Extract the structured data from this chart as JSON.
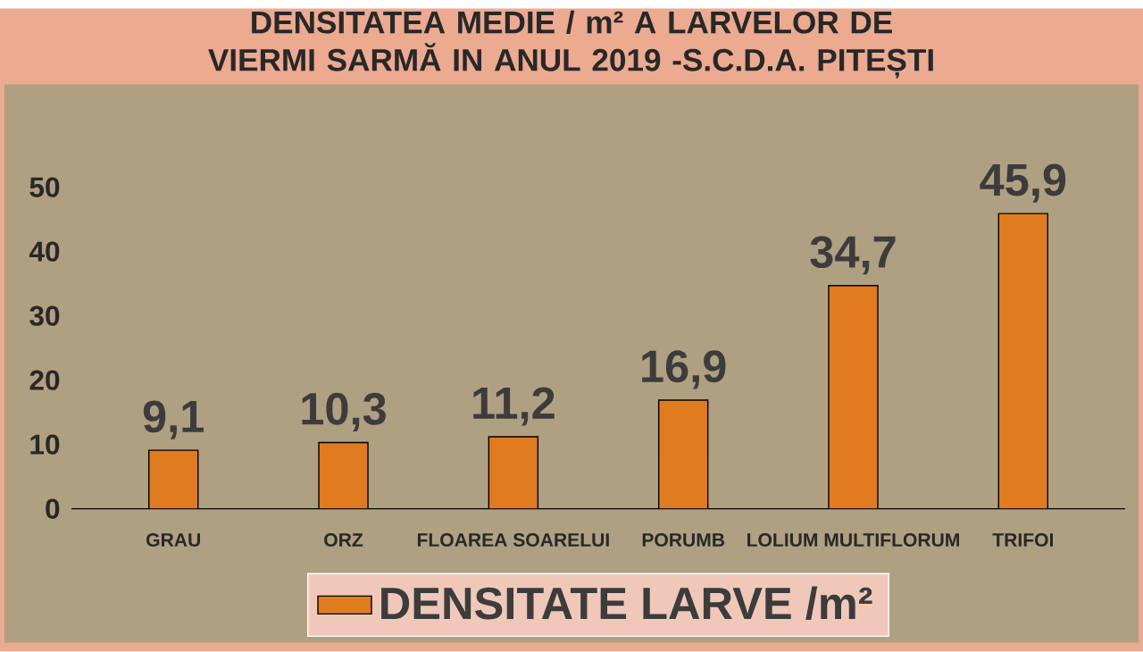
{
  "chart_data": {
    "type": "bar",
    "title": "DENSITATEA  MEDIE / m² A LARVELOR DE VIERMI SARMĂ IN ANUL 2019 -S.C.D.A. PITEȘTI",
    "categories": [
      "GRAU",
      "ORZ",
      "FLOAREA SOARELUI",
      "PORUMB",
      "LOLIUM  MULTIFLORUM",
      "TRIFOI"
    ],
    "series": [
      {
        "name": "DENSITATE LARVE /m²",
        "color": "#e07b1f",
        "values": [
          9.1,
          10.3,
          11.2,
          16.9,
          34.7,
          45.9
        ],
        "value_labels": [
          "9,1",
          "10,3",
          "11,2",
          "16,9",
          "34,7",
          "45,9"
        ]
      }
    ],
    "ylim": [
      0,
      50
    ],
    "yticks": [
      0,
      10,
      20,
      30,
      40,
      50
    ],
    "grid": false,
    "legend": "bottom"
  }
}
